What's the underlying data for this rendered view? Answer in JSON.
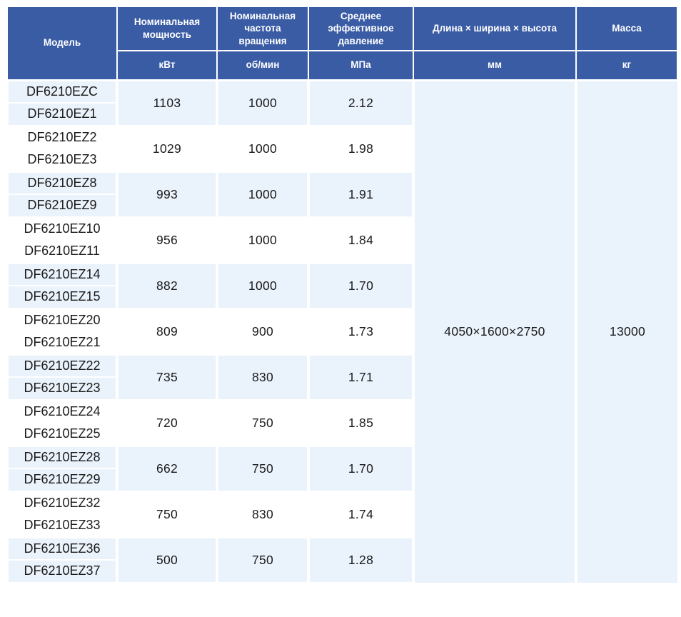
{
  "table": {
    "columns": [
      {
        "label": "Модель",
        "unit": ""
      },
      {
        "label": "Номинальная мощность",
        "unit": "кВт"
      },
      {
        "label": "Номинальная частота вращения",
        "unit": "об/мин"
      },
      {
        "label": "Среднее эффективное давление",
        "unit": "МПа"
      },
      {
        "label": "Длина × ширина × высота",
        "unit": "мм"
      },
      {
        "label": "Масса",
        "unit": "кг"
      }
    ],
    "groups": [
      {
        "models": [
          "DF6210EZC",
          "DF6210EZ1"
        ],
        "power": "1103",
        "speed": "1000",
        "pressure": "2.12"
      },
      {
        "models": [
          "DF6210EZ2",
          "DF6210EZ3"
        ],
        "power": "1029",
        "speed": "1000",
        "pressure": "1.98"
      },
      {
        "models": [
          "DF6210EZ8",
          "DF6210EZ9"
        ],
        "power": "993",
        "speed": "1000",
        "pressure": "1.91"
      },
      {
        "models": [
          "DF6210EZ10",
          "DF6210EZ11"
        ],
        "power": "956",
        "speed": "1000",
        "pressure": "1.84"
      },
      {
        "models": [
          "DF6210EZ14",
          "DF6210EZ15"
        ],
        "power": "882",
        "speed": "1000",
        "pressure": "1.70"
      },
      {
        "models": [
          "DF6210EZ20",
          "DF6210EZ21"
        ],
        "power": "809",
        "speed": "900",
        "pressure": "1.73"
      },
      {
        "models": [
          "DF6210EZ22",
          "DF6210EZ23"
        ],
        "power": "735",
        "speed": "830",
        "pressure": "1.71"
      },
      {
        "models": [
          "DF6210EZ24",
          "DF6210EZ25"
        ],
        "power": "720",
        "speed": "750",
        "pressure": "1.85"
      },
      {
        "models": [
          "DF6210EZ28",
          "DF6210EZ29"
        ],
        "power": "662",
        "speed": "750",
        "pressure": "1.70"
      },
      {
        "models": [
          "DF6210EZ32",
          "DF6210EZ33"
        ],
        "power": "750",
        "speed": "830",
        "pressure": "1.74"
      },
      {
        "models": [
          "DF6210EZ36",
          "DF6210EZ37"
        ],
        "power": "500",
        "speed": "750",
        "pressure": "1.28"
      }
    ],
    "dimensions": "4050×1600×2750",
    "mass": "13000"
  },
  "colors": {
    "header_bg": "#3a5ca5",
    "header_text": "#ffffff",
    "row_alt_bg": "#eaf2fb",
    "row_bg": "#ffffff",
    "body_text": "#1a1a1a"
  }
}
